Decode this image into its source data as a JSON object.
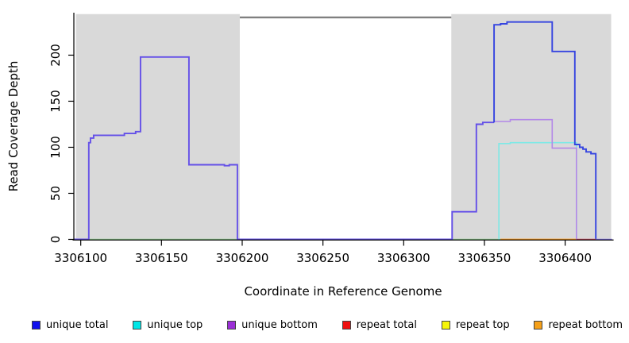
{
  "chart_data": {
    "type": "line",
    "title": "",
    "xlabel": "Coordinate in Reference Genome",
    "ylabel": "Read Coverage Depth",
    "xlim": [
      3306095,
      3306430
    ],
    "ylim": [
      0,
      245
    ],
    "x_ticks": [
      3306100,
      3306150,
      3306200,
      3306250,
      3306300,
      3306350,
      3306400
    ],
    "y_ticks": [
      0,
      50,
      100,
      150,
      200
    ],
    "grid": false,
    "legend_position": "bottom",
    "shaded_regions": [
      {
        "name": "left-coverage-region",
        "x0": 3306097,
        "x1": 3306198.5,
        "color": "#d9d9d9"
      },
      {
        "name": "right-coverage-region",
        "x0": 3306329.5,
        "x1": 3306428.5,
        "color": "#d9d9d9"
      }
    ],
    "annotation_segments": [
      {
        "name": "middle-gap-bar",
        "x0": 3306198.5,
        "x1": 3306329.5,
        "y": 241,
        "color": "#808080",
        "width": 2.4
      }
    ],
    "series": [
      {
        "name": "baseline-green-left",
        "color": "#90ce90",
        "width": 1.6,
        "points": [
          [
            3306097,
            0
          ],
          [
            3306197,
            0
          ]
        ]
      },
      {
        "name": "baseline-green-right",
        "color": "#90ce90",
        "width": 1.6,
        "points": [
          [
            3306330,
            0
          ],
          [
            3306360,
            0
          ]
        ]
      },
      {
        "name": "repeat bottom",
        "color": "#ff9d1e",
        "width": 1.8,
        "points": [
          [
            3306360,
            0
          ],
          [
            3306407,
            0
          ]
        ]
      },
      {
        "name": "unique top",
        "color": "#7de9e6",
        "width": 1.6,
        "points": [
          [
            3306359,
            0
          ],
          [
            3306359,
            104
          ],
          [
            3306366,
            104
          ],
          [
            3306366,
            105
          ],
          [
            3306407,
            105
          ],
          [
            3306407,
            0
          ]
        ]
      },
      {
        "name": "unique bottom",
        "color": "#b388e8",
        "width": 1.6,
        "points": [
          [
            3306356,
            128
          ],
          [
            3306366,
            128
          ],
          [
            3306366,
            130
          ],
          [
            3306392,
            130
          ],
          [
            3306392,
            99
          ],
          [
            3306407,
            99
          ],
          [
            3306407,
            0
          ]
        ]
      },
      {
        "name": "unique total (left block)",
        "color": "#6450e8",
        "width": 1.9,
        "points": [
          [
            3306096,
            0
          ],
          [
            3306105,
            0
          ],
          [
            3306105,
            105
          ],
          [
            3306106,
            105
          ],
          [
            3306106,
            110
          ],
          [
            3306108,
            110
          ],
          [
            3306108,
            113
          ],
          [
            3306127,
            113
          ],
          [
            3306127,
            115
          ],
          [
            3306134,
            115
          ],
          [
            3306134,
            117
          ],
          [
            3306137,
            117
          ],
          [
            3306137,
            198
          ],
          [
            3306167,
            198
          ],
          [
            3306167,
            81
          ],
          [
            3306189,
            81
          ],
          [
            3306189,
            80
          ],
          [
            3306192,
            80
          ],
          [
            3306192,
            81
          ],
          [
            3306197,
            81
          ],
          [
            3306197,
            0
          ],
          [
            3306330,
            0
          ],
          [
            3306330,
            30
          ],
          [
            3306345,
            30
          ],
          [
            3306345,
            125
          ],
          [
            3306349,
            125
          ],
          [
            3306349,
            127
          ],
          [
            3306356,
            127
          ]
        ]
      },
      {
        "name": "unique total (right block)",
        "color": "#3544e0",
        "width": 1.9,
        "points": [
          [
            3306356,
            127
          ],
          [
            3306356,
            233
          ],
          [
            3306360,
            233
          ],
          [
            3306360,
            234
          ],
          [
            3306364,
            234
          ],
          [
            3306364,
            236
          ],
          [
            3306392,
            236
          ],
          [
            3306392,
            204
          ],
          [
            3306406,
            204
          ],
          [
            3306406,
            103
          ],
          [
            3306409,
            103
          ],
          [
            3306409,
            100
          ],
          [
            3306411,
            100
          ],
          [
            3306411,
            98
          ],
          [
            3306413,
            98
          ],
          [
            3306413,
            95
          ],
          [
            3306416,
            95
          ],
          [
            3306416,
            93
          ],
          [
            3306419,
            93
          ],
          [
            3306419,
            0
          ]
        ]
      },
      {
        "name": "repeat total",
        "color": "#c4485c",
        "width": 1.6,
        "points": [
          [
            3306407,
            0
          ],
          [
            3306419,
            0
          ]
        ]
      },
      {
        "name": "baseline-violet-right",
        "color": "#8274ee",
        "width": 1.6,
        "points": [
          [
            3306419,
            0
          ],
          [
            3306429,
            0
          ]
        ]
      }
    ]
  },
  "legend": {
    "items": [
      {
        "label": "unique total",
        "color": "#1010ee"
      },
      {
        "label": "unique top",
        "color": "#00e6e6"
      },
      {
        "label": "unique bottom",
        "color": "#9b2fd6"
      },
      {
        "label": "repeat total",
        "color": "#ee1010"
      },
      {
        "label": "repeat top",
        "color": "#f5f50a"
      },
      {
        "label": "repeat bottom",
        "color": "#f5a019"
      }
    ]
  }
}
